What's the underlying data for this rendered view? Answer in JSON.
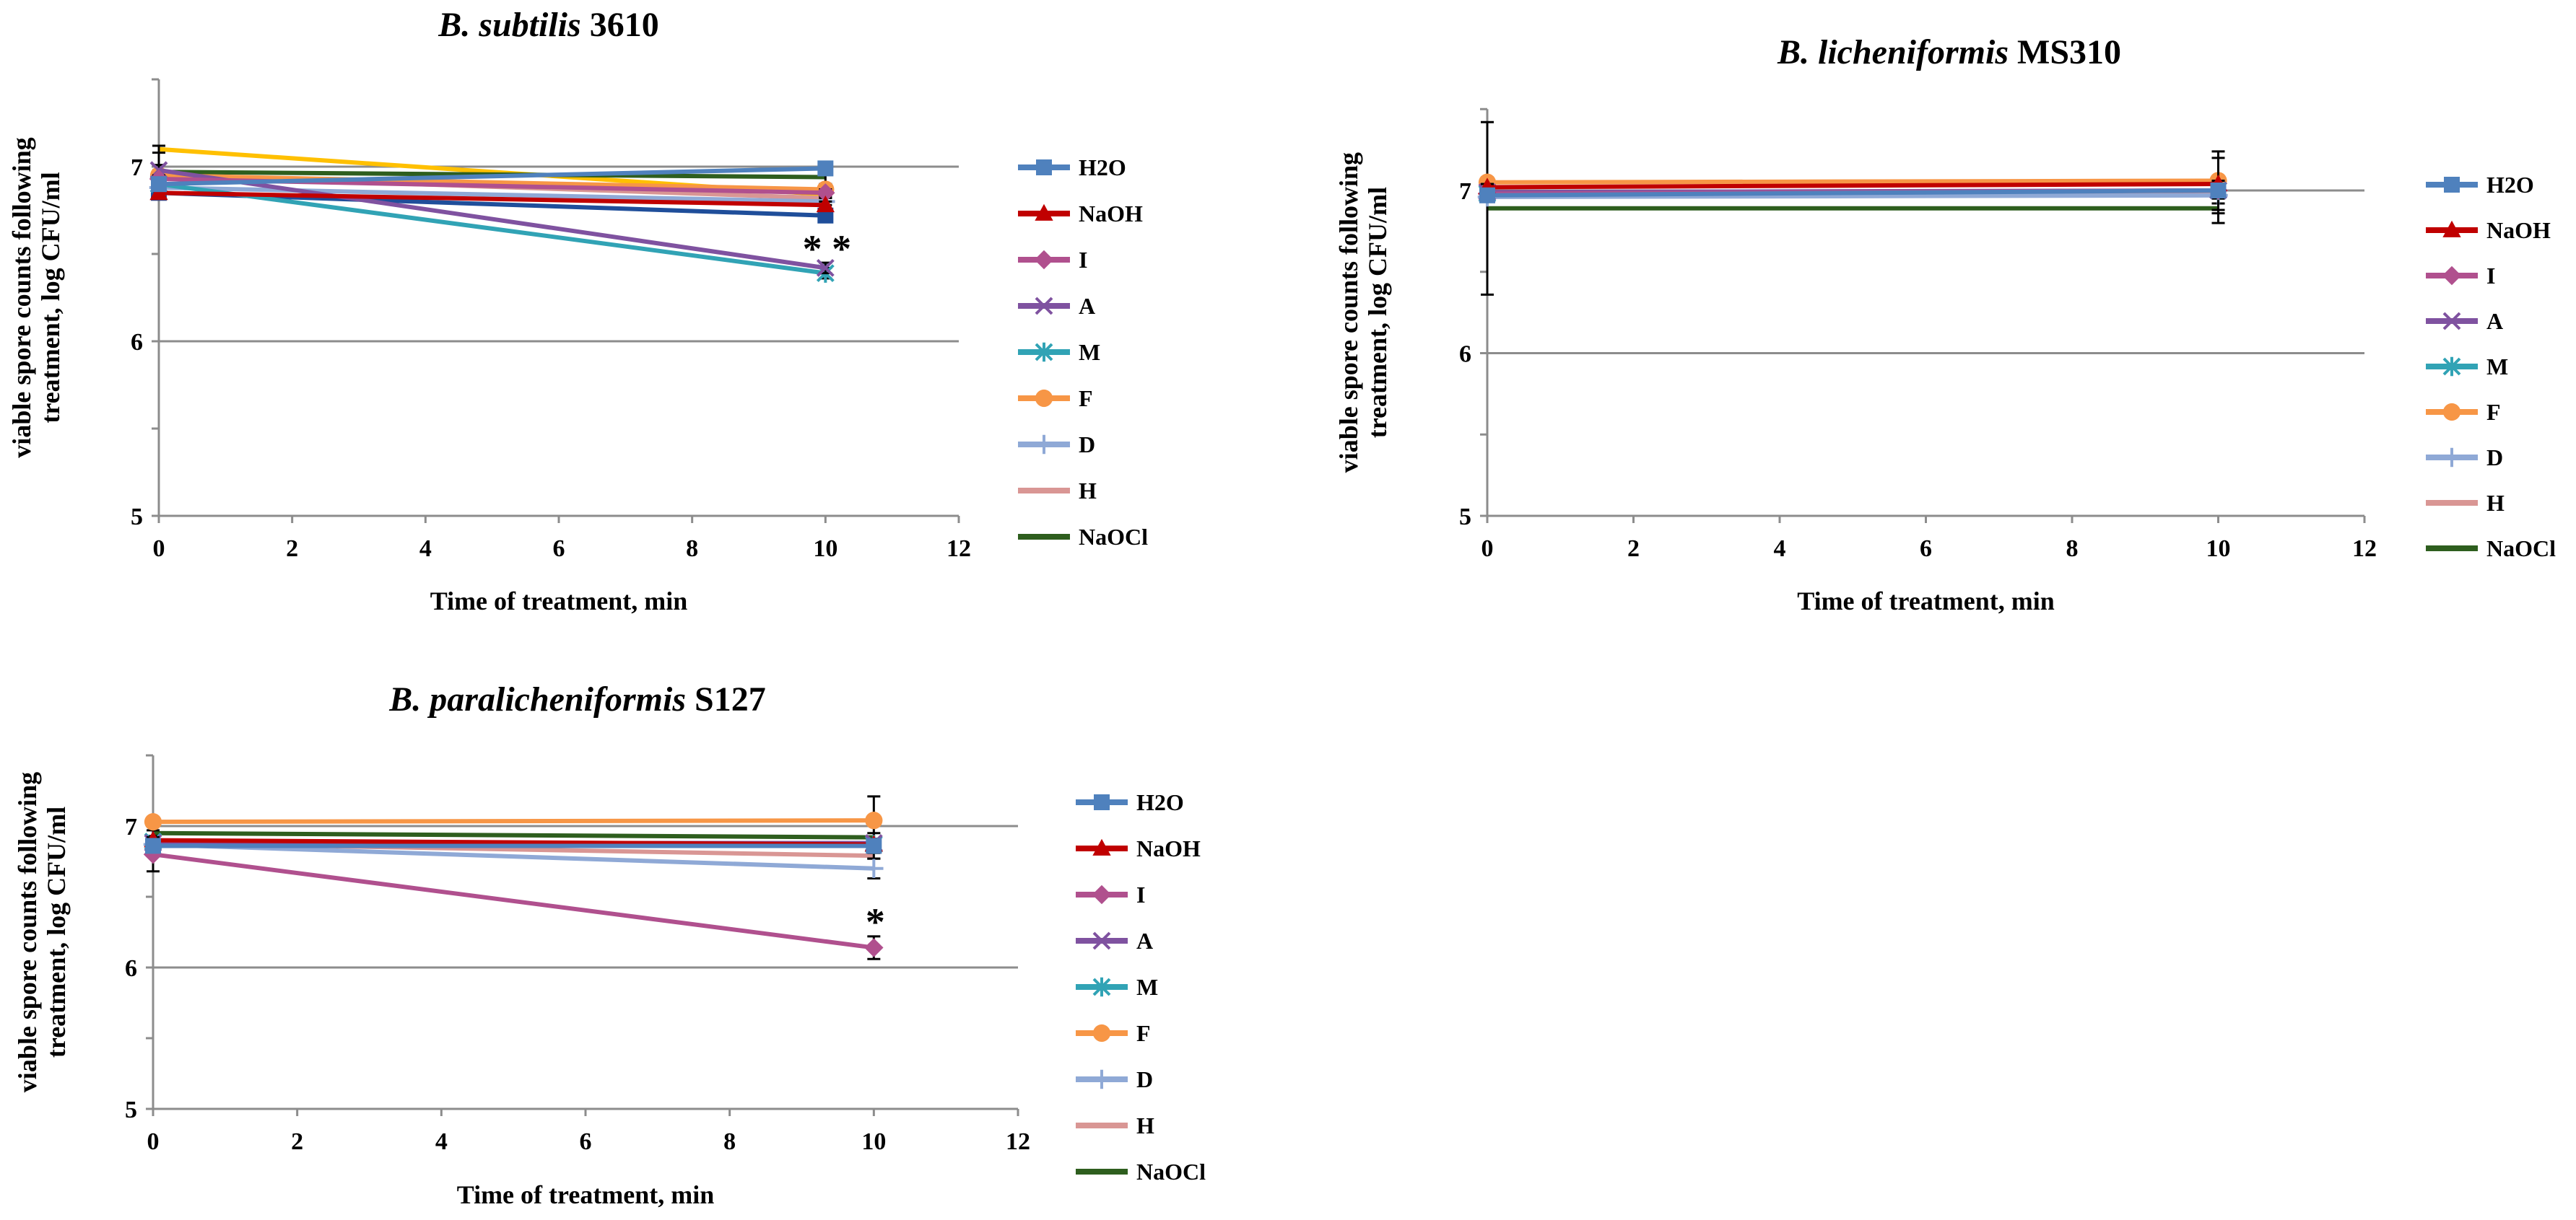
{
  "chart_data": [
    {
      "type": "line",
      "title_italic": "B. subtilis",
      "title_rest": " 3610",
      "xlabel": "Time of treatment, min",
      "ylabel_line1": "viable spore counts following",
      "ylabel_line2": "treatment, log CFU/ml",
      "xlim": [
        0,
        12
      ],
      "ylim": [
        5,
        7.5
      ],
      "xticks": [
        0,
        2,
        4,
        6,
        8,
        10,
        12
      ],
      "yticks": [
        5,
        6,
        7
      ],
      "gridlines_y": [
        6,
        7
      ],
      "x": [
        0,
        10
      ],
      "series": [
        {
          "name": "H2O",
          "values": [
            6.9,
            6.99
          ],
          "err": [
            0.02,
            0.02
          ],
          "color": "#4F81BD",
          "marker": "square"
        },
        {
          "name": "NaOH",
          "values": [
            6.85,
            6.78
          ],
          "err": [
            0.02,
            0.02
          ],
          "color": "#C00000",
          "marker": "triangle"
        },
        {
          "name": "I",
          "values": [
            6.93,
            6.85
          ],
          "err": [
            0.02,
            0.02
          ],
          "color": "#B0508E",
          "marker": "diamond"
        },
        {
          "name": "A",
          "values": [
            6.98,
            6.42
          ],
          "err": [
            0.03,
            0.03
          ],
          "color": "#7F52A0",
          "marker": "x"
        },
        {
          "name": "M",
          "values": [
            6.9,
            6.39
          ],
          "err": [
            0.02,
            0.03
          ],
          "color": "#31A3B5",
          "marker": "star"
        },
        {
          "name": "F",
          "values": [
            6.95,
            6.87
          ],
          "err": [
            0.03,
            0.03
          ],
          "color": "#F79646",
          "marker": "circle"
        },
        {
          "name": "D",
          "values": [
            6.88,
            6.8
          ],
          "err": [
            0.02,
            0.02
          ],
          "color": "#8FA9D6",
          "marker": "plus"
        },
        {
          "name": "H",
          "values": [
            6.95,
            6.82
          ],
          "err": [
            0.02,
            0.02
          ],
          "color": "#D99694",
          "marker": "none"
        },
        {
          "name": "NaOCl",
          "values": [
            6.97,
            6.94
          ],
          "err": [
            0.15,
            0.04
          ],
          "color": "#2E5E1E",
          "marker": "none"
        },
        {
          "name": "",
          "values": [
            7.1,
            6.84
          ],
          "err": [
            0.02,
            0.02
          ],
          "color": "#FFC000",
          "marker": "none"
        },
        {
          "name": "",
          "values": [
            6.85,
            6.72
          ],
          "err": [
            0.02,
            0.03
          ],
          "color": "#1F4E9A",
          "marker": "square"
        }
      ],
      "annotations": [
        {
          "text": "* *",
          "x": 10,
          "y": 6.43
        }
      ],
      "legend": [
        "H2O",
        "NaOH",
        "I",
        "A",
        "M",
        "F",
        "D",
        "H",
        "NaOCl"
      ]
    },
    {
      "type": "line",
      "title_italic": "B. licheniformis",
      "title_rest": "  MS310",
      "xlabel": "Time of treatment, min",
      "ylabel_line1": "viable spore counts following",
      "ylabel_line2": "treatment, log CFU/ml",
      "xlim": [
        0,
        12
      ],
      "ylim": [
        5,
        7.5
      ],
      "xticks": [
        0,
        2,
        4,
        6,
        8,
        10,
        12
      ],
      "yticks": [
        5,
        6,
        7
      ],
      "gridlines_y": [
        6,
        7
      ],
      "x": [
        0,
        10
      ],
      "series": [
        {
          "name": "H2O",
          "values": [
            6.97,
            7.0
          ],
          "err": [
            0.02,
            0.02
          ],
          "color": "#4F81BD",
          "marker": "square"
        },
        {
          "name": "NaOH",
          "values": [
            7.02,
            7.04
          ],
          "err": [
            0.02,
            0.02
          ],
          "color": "#C00000",
          "marker": "triangle"
        },
        {
          "name": "I",
          "values": [
            6.98,
            7.0
          ],
          "err": [
            0.02,
            0.02
          ],
          "color": "#B0508E",
          "marker": "diamond"
        },
        {
          "name": "A",
          "values": [
            6.99,
            7.0
          ],
          "err": [
            0.02,
            0.02
          ],
          "color": "#7F52A0",
          "marker": "x"
        },
        {
          "name": "M",
          "values": [
            6.98,
            7.0
          ],
          "err": [
            0.02,
            0.2
          ],
          "color": "#31A3B5",
          "marker": "star"
        },
        {
          "name": "F",
          "values": [
            7.05,
            7.06
          ],
          "err": [
            0.02,
            0.18
          ],
          "color": "#F79646",
          "marker": "circle"
        },
        {
          "name": "D",
          "values": [
            6.96,
            6.97
          ],
          "err": [
            0.02,
            0.02
          ],
          "color": "#8FA9D6",
          "marker": "plus"
        },
        {
          "name": "H",
          "values": [
            6.97,
            6.99
          ],
          "err": [
            0.02,
            0.02
          ],
          "color": "#D99694",
          "marker": "none"
        },
        {
          "name": "NaOCl",
          "values": [
            6.89,
            6.89
          ],
          "err": [
            0.53,
            0.03
          ],
          "color": "#2E5E1E",
          "marker": "none"
        }
      ],
      "annotations": [],
      "legend": [
        "H2O",
        "NaOH",
        "I",
        "A",
        "M",
        "F",
        "D",
        "H",
        "NaOCl"
      ]
    },
    {
      "type": "line",
      "title_italic": "B. paralicheniformis",
      "title_rest": " S127",
      "xlabel": "Time of treatment, min",
      "ylabel_line1": "viable spore counts following",
      "ylabel_line2": "treatment, log CFU/ml",
      "xlim": [
        0,
        12
      ],
      "ylim": [
        5,
        7.5
      ],
      "xticks": [
        0,
        2,
        4,
        6,
        8,
        10,
        12
      ],
      "yticks": [
        5,
        6,
        7
      ],
      "gridlines_y": [
        6,
        7
      ],
      "x": [
        0,
        10
      ],
      "series": [
        {
          "name": "H2O",
          "values": [
            6.86,
            6.86
          ],
          "err": [
            0.02,
            0.02
          ],
          "color": "#4F81BD",
          "marker": "square"
        },
        {
          "name": "NaOH",
          "values": [
            6.9,
            6.87
          ],
          "err": [
            0.02,
            0.02
          ],
          "color": "#C00000",
          "marker": "triangle"
        },
        {
          "name": "I",
          "values": [
            6.8,
            6.14
          ],
          "err": [
            0.12,
            0.08
          ],
          "color": "#B0508E",
          "marker": "diamond"
        },
        {
          "name": "A",
          "values": [
            6.88,
            6.88
          ],
          "err": [
            0.02,
            0.02
          ],
          "color": "#7F52A0",
          "marker": "x"
        },
        {
          "name": "M",
          "values": [
            6.89,
            6.87
          ],
          "err": [
            0.02,
            0.04
          ],
          "color": "#31A3B5",
          "marker": "star"
        },
        {
          "name": "F",
          "values": [
            7.03,
            7.04
          ],
          "err": [
            0.02,
            0.17
          ],
          "color": "#F79646",
          "marker": "circle"
        },
        {
          "name": "D",
          "values": [
            6.87,
            6.7
          ],
          "err": [
            0.02,
            0.07
          ],
          "color": "#8FA9D6",
          "marker": "plus"
        },
        {
          "name": "H",
          "values": [
            6.88,
            6.79
          ],
          "err": [
            0.02,
            0.02
          ],
          "color": "#D99694",
          "marker": "none"
        },
        {
          "name": "NaOCl",
          "values": [
            6.95,
            6.92
          ],
          "err": [
            0.02,
            0.03
          ],
          "color": "#2E5E1E",
          "marker": "none"
        }
      ],
      "annotations": [
        {
          "text": "*",
          "x": 10,
          "y": 6.2
        }
      ],
      "legend": [
        "H2O",
        "NaOH",
        "I",
        "A",
        "M",
        "F",
        "D",
        "H",
        "NaOCl"
      ]
    }
  ]
}
